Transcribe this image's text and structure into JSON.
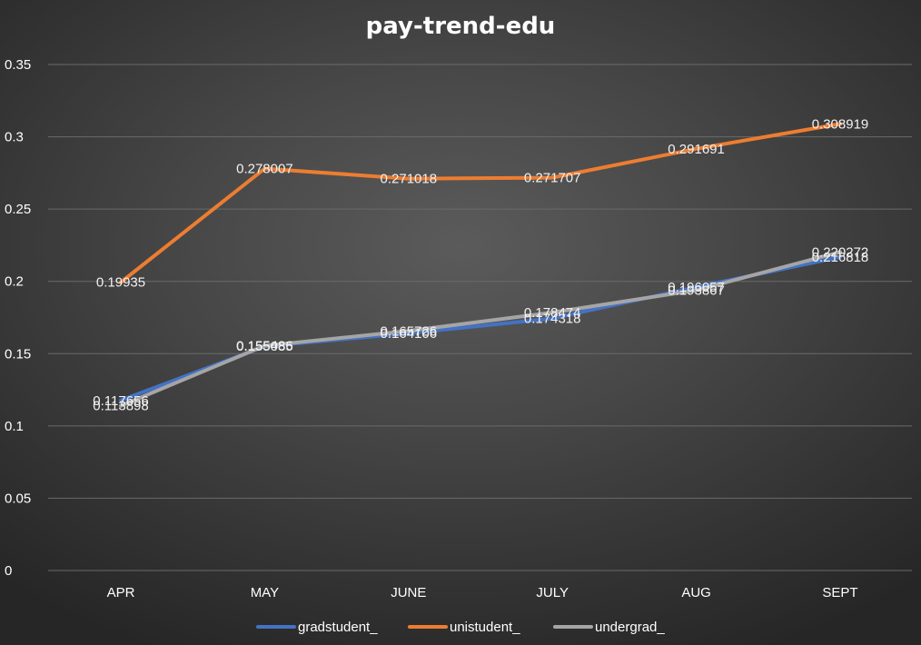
{
  "chart_data": {
    "type": "line",
    "title": "pay-trend-edu",
    "xlabel": "",
    "ylabel": "",
    "categories": [
      "APR",
      "MAY",
      "JUNE",
      "JULY",
      "AUG",
      "SEPT"
    ],
    "ylim": [
      0,
      0.35
    ],
    "yticks": [
      "0",
      "0.05",
      "0.1",
      "0.15",
      "0.2",
      "0.25",
      "0.3",
      "0.35"
    ],
    "ytick_values": [
      0,
      0.05,
      0.1,
      0.15,
      0.2,
      0.25,
      0.3,
      0.35
    ],
    "grid": true,
    "legend_position": "bottom",
    "series": [
      {
        "name": "gradstudent_",
        "color": "#4472c4",
        "values": [
          0.117656,
          0.155085,
          0.164106,
          0.174318,
          0.196057,
          0.216818
        ],
        "labels": [
          "0.117656",
          "0.155085",
          "0.164106",
          "0.174318",
          "0.196057",
          "0.216818"
        ]
      },
      {
        "name": "unistudent_",
        "color": "#ed7d31",
        "values": [
          0.19935,
          0.278007,
          0.271018,
          0.271707,
          0.291691,
          0.308919
        ],
        "labels": [
          "0.19935",
          "0.278007",
          "0.271018",
          "0.271707",
          "0.291691",
          "0.308919"
        ]
      },
      {
        "name": "undergrad_",
        "color": "#a5a5a5",
        "values": [
          0.113898,
          0.155486,
          0.165726,
          0.178474,
          0.193867,
          0.220272
        ],
        "labels": [
          "0.113898",
          "0.155486",
          "0.165726",
          "0.178474",
          "0.193867",
          "0.220272"
        ]
      }
    ]
  }
}
